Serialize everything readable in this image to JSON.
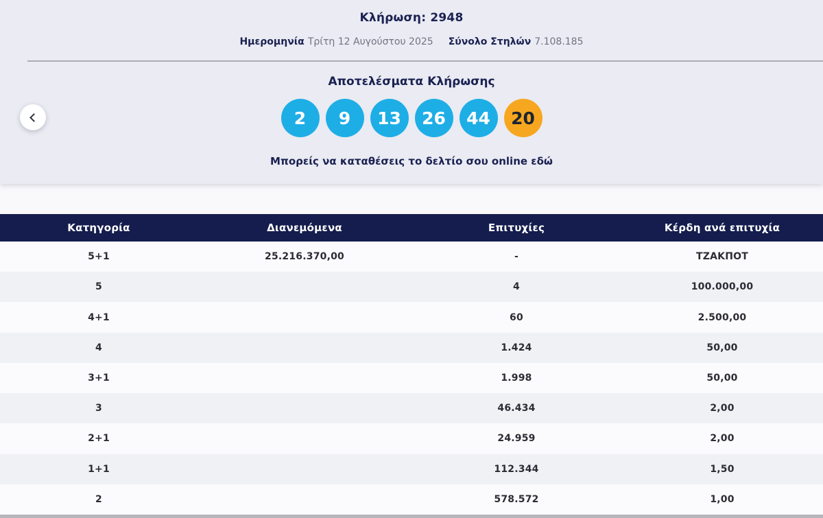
{
  "header": {
    "title": "Κλήρωση: 2948",
    "date_label": "Ημερομηνία",
    "date_value": "Τρίτη 12 Αυγούστου 2025",
    "columns_label": "Σύνολο Στηλών",
    "columns_value": "7.108.185"
  },
  "results": {
    "heading": "Αποτελέσματα Κλήρωσης",
    "numbers": [
      "2",
      "9",
      "13",
      "26",
      "44"
    ],
    "joker_number": "20",
    "link_text": "Μπορείς να καταθέσεις το δελτίο σου online εδώ",
    "back_icon": "chevron-left-icon"
  },
  "colors": {
    "ball_blue": "#1eaee6",
    "ball_orange": "#f7a71f",
    "navy": "#1a2151",
    "table_header_bg": "#141d4d",
    "hero_bg": "#eaebf3"
  },
  "table": {
    "headers": [
      "Κατηγορία",
      "Διανεμόμενα",
      "Επιτυχίες",
      "Κέρδη ανά επιτυχία"
    ],
    "rows": [
      {
        "category": "5+1",
        "distributed": "25.216.370,00",
        "winners": "-",
        "prize": "ΤΖΑΚΠΟΤ"
      },
      {
        "category": "5",
        "distributed": "",
        "winners": "4",
        "prize": "100.000,00"
      },
      {
        "category": "4+1",
        "distributed": "",
        "winners": "60",
        "prize": "2.500,00"
      },
      {
        "category": "4",
        "distributed": "",
        "winners": "1.424",
        "prize": "50,00"
      },
      {
        "category": "3+1",
        "distributed": "",
        "winners": "1.998",
        "prize": "50,00"
      },
      {
        "category": "3",
        "distributed": "",
        "winners": "46.434",
        "prize": "2,00"
      },
      {
        "category": "2+1",
        "distributed": "",
        "winners": "24.959",
        "prize": "2,00"
      },
      {
        "category": "1+1",
        "distributed": "",
        "winners": "112.344",
        "prize": "1,50"
      },
      {
        "category": "2",
        "distributed": "",
        "winners": "578.572",
        "prize": "1,00"
      }
    ]
  }
}
